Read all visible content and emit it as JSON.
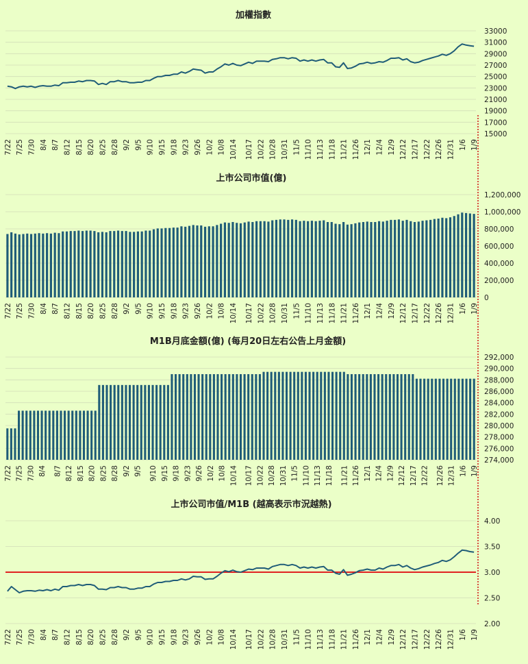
{
  "colors": {
    "background": "#ebffc8",
    "series": "#1f5c78",
    "grid": "#d2ddb8",
    "threshold": "#e02020",
    "marker": "#d01010"
  },
  "chart_data": [
    {
      "type": "line",
      "title": "加權指數",
      "ylim": [
        15000,
        33000
      ],
      "yticks": [
        "33000",
        "31000",
        "29000",
        "27000",
        "25000",
        "23000",
        "21000",
        "19000",
        "17000",
        "15000"
      ],
      "ytick_values": [
        33000,
        31000,
        29000,
        27000,
        25000,
        23000,
        21000,
        19000,
        17000,
        15000
      ],
      "xticks": [
        "7/22",
        "7/25",
        "7/30",
        "8/4",
        "8/7",
        "8/12",
        "8/15",
        "8/20",
        "8/25",
        "8/28",
        "9/2",
        "9/5",
        "9/10",
        "9/15",
        "9/18",
        "9/23",
        "9/26",
        "10/2",
        "10/8",
        "10/14",
        "10/17",
        "10/22",
        "10/28",
        "10/31",
        "11/5",
        "11/10",
        "11/13",
        "11/18",
        "11/21",
        "11/26",
        "12/1",
        "12/4",
        "12/9",
        "12/12",
        "12/17",
        "12/22",
        "12/26",
        "12/31",
        "1/6",
        "1/9"
      ],
      "values": [
        23300,
        23200,
        22900,
        23200,
        23300,
        23200,
        23300,
        23100,
        23300,
        23400,
        23300,
        23300,
        23500,
        23400,
        23900,
        23900,
        24000,
        24000,
        24200,
        24100,
        24300,
        24300,
        24200,
        23600,
        23800,
        23600,
        24100,
        24100,
        24300,
        24100,
        24100,
        23900,
        23900,
        24000,
        24000,
        24300,
        24300,
        24700,
        25000,
        25000,
        25200,
        25200,
        25400,
        25400,
        25800,
        25600,
        25900,
        26300,
        26200,
        26100,
        25600,
        25800,
        25800,
        26300,
        26700,
        27200,
        27000,
        27300,
        27000,
        26900,
        27200,
        27500,
        27300,
        27700,
        27700,
        27700,
        27600,
        28000,
        28100,
        28300,
        28300,
        28100,
        28300,
        28200,
        27700,
        27900,
        27700,
        27900,
        27700,
        27900,
        28000,
        27400,
        27400,
        26700,
        26600,
        27400,
        26400,
        26500,
        26800,
        27200,
        27300,
        27500,
        27300,
        27400,
        27600,
        27500,
        27800,
        28200,
        28200,
        28300,
        27900,
        28100,
        27600,
        27400,
        27500,
        27800,
        28000,
        28200,
        28400,
        28600,
        28900,
        28700,
        29000,
        29500,
        30200,
        30700,
        30500,
        30400,
        30300
      ]
    },
    {
      "type": "bar",
      "title": "上市公司市值(億)",
      "ylim": [
        0,
        1200000
      ],
      "yticks": [
        "1,200,000",
        "1,000,000",
        "800,000",
        "600,000",
        "400,000",
        "200,000",
        "0"
      ],
      "ytick_values": [
        1200000,
        1000000,
        800000,
        600000,
        400000,
        200000,
        0
      ],
      "xticks": [
        "7/22",
        "7/25",
        "7/30",
        "8/4",
        "8/7",
        "8/12",
        "8/15",
        "8/20",
        "8/25",
        "8/28",
        "9/2",
        "9/5",
        "9/10",
        "9/15",
        "9/18",
        "9/23",
        "9/26",
        "10/2",
        "10/8",
        "10/14",
        "10/17",
        "10/22",
        "10/28",
        "10/31",
        "11/5",
        "11/10",
        "11/13",
        "11/18",
        "11/21",
        "11/26",
        "12/1",
        "12/4",
        "12/9",
        "12/12",
        "12/17",
        "12/22",
        "12/26",
        "12/31",
        "1/6",
        "1/9"
      ],
      "values": [
        740000,
        760000,
        745000,
        735000,
        740000,
        745000,
        740000,
        745000,
        750000,
        745000,
        750000,
        745000,
        755000,
        750000,
        770000,
        770000,
        775000,
        775000,
        780000,
        775000,
        780000,
        780000,
        775000,
        760000,
        765000,
        760000,
        775000,
        775000,
        780000,
        775000,
        775000,
        765000,
        765000,
        770000,
        770000,
        780000,
        780000,
        795000,
        805000,
        805000,
        810000,
        810000,
        815000,
        815000,
        830000,
        825000,
        835000,
        845000,
        840000,
        840000,
        825000,
        830000,
        830000,
        845000,
        860000,
        875000,
        870000,
        880000,
        870000,
        865000,
        875000,
        885000,
        880000,
        890000,
        890000,
        890000,
        885000,
        900000,
        905000,
        910000,
        910000,
        905000,
        910000,
        905000,
        890000,
        895000,
        890000,
        895000,
        890000,
        895000,
        900000,
        880000,
        880000,
        860000,
        855000,
        880000,
        850000,
        855000,
        865000,
        875000,
        880000,
        885000,
        880000,
        880000,
        890000,
        885000,
        895000,
        905000,
        905000,
        910000,
        895000,
        905000,
        890000,
        880000,
        885000,
        895000,
        900000,
        905000,
        915000,
        920000,
        930000,
        925000,
        935000,
        950000,
        970000,
        990000,
        985000,
        980000,
        975000
      ]
    },
    {
      "type": "bar",
      "title": "M1B月底金額(億) (每月20日左右公告上月金額)",
      "ylim": [
        274000,
        292000
      ],
      "yticks": [
        "292,000",
        "290,000",
        "288,000",
        "286,000",
        "284,000",
        "282,000",
        "280,000",
        "278,000",
        "276,000",
        "274,000"
      ],
      "ytick_values": [
        292000,
        290000,
        288000,
        286000,
        284000,
        282000,
        280000,
        278000,
        276000,
        274000
      ],
      "xticks": [
        "7/22",
        "7/25",
        "7/30",
        "8/4",
        "8/7",
        "8/12",
        "8/15",
        "8/20",
        "8/25",
        "8/28",
        "9/2",
        "9/5",
        "9/10",
        "9/15",
        "9/18",
        "9/23",
        "9/26",
        "10/2",
        "10/8",
        "10/14",
        "10/17",
        "10/22",
        "10/28",
        "10/31",
        "11/5",
        "11/10",
        "11/13",
        "11/18",
        "11/21",
        "11/26",
        "12/1",
        "12/4",
        "12/9",
        "12/12",
        "12/17",
        "12/22",
        "12/26",
        "12/31",
        "1/6",
        "1/9"
      ],
      "values": [
        279500,
        279500,
        279500,
        282600,
        282600,
        282600,
        282600,
        282600,
        282600,
        282600,
        282600,
        282600,
        282600,
        282600,
        282600,
        282600,
        282600,
        282600,
        282600,
        282600,
        282600,
        282600,
        282600,
        282600,
        287100,
        287100,
        287100,
        287100,
        287100,
        287100,
        287100,
        287100,
        287100,
        287100,
        287100,
        287100,
        287100,
        287100,
        287100,
        287100,
        287100,
        287100,
        287100,
        289000,
        289000,
        289000,
        289000,
        289000,
        289000,
        289000,
        289000,
        289000,
        289000,
        289000,
        289000,
        289000,
        289000,
        289000,
        289000,
        289000,
        289000,
        289000,
        289000,
        289000,
        289000,
        289000,
        289000,
        289400,
        289400,
        289400,
        289400,
        289400,
        289400,
        289400,
        289400,
        289400,
        289400,
        289400,
        289400,
        289400,
        289400,
        289400,
        289400,
        289400,
        289400,
        289400,
        289400,
        289400,
        289400,
        289000,
        289000,
        289000,
        289000,
        289000,
        289000,
        289000,
        289000,
        289000,
        289000,
        289000,
        289000,
        289000,
        289000,
        289000,
        289000,
        289000,
        289000,
        288200,
        288200,
        288200,
        288200,
        288200,
        288200,
        288200,
        288200,
        288200,
        288200,
        288200,
        288200,
        288200,
        288200,
        288200,
        288200
      ]
    },
    {
      "type": "line",
      "title": "上市公司市值/M1B (越高表示市況越熱)",
      "ylim": [
        2.0,
        4.0
      ],
      "yticks": [
        "4.00",
        "3.50",
        "3.00",
        "2.50",
        "2.00"
      ],
      "ytick_values": [
        4.0,
        3.5,
        3.0,
        2.5,
        2.0
      ],
      "threshold": 3.0,
      "xticks": [
        "7/22",
        "7/25",
        "7/30",
        "8/4",
        "8/7",
        "8/12",
        "8/15",
        "8/20",
        "8/25",
        "8/28",
        "9/2",
        "9/5",
        "9/10",
        "9/15",
        "9/18",
        "9/23",
        "9/26",
        "10/2",
        "10/8",
        "10/14",
        "10/17",
        "10/22",
        "10/28",
        "10/31",
        "11/5",
        "11/10",
        "11/13",
        "11/18",
        "11/21",
        "11/26",
        "12/1",
        "12/4",
        "12/9",
        "12/12",
        "12/17",
        "12/22",
        "12/26",
        "12/31",
        "1/6",
        "1/9"
      ],
      "values": [
        2.63,
        2.72,
        2.66,
        2.6,
        2.63,
        2.64,
        2.64,
        2.63,
        2.65,
        2.64,
        2.66,
        2.64,
        2.67,
        2.65,
        2.72,
        2.72,
        2.74,
        2.74,
        2.76,
        2.74,
        2.76,
        2.76,
        2.74,
        2.67,
        2.67,
        2.66,
        2.7,
        2.7,
        2.72,
        2.7,
        2.7,
        2.67,
        2.67,
        2.69,
        2.69,
        2.72,
        2.72,
        2.77,
        2.8,
        2.8,
        2.82,
        2.82,
        2.84,
        2.84,
        2.87,
        2.85,
        2.87,
        2.92,
        2.91,
        2.91,
        2.86,
        2.87,
        2.87,
        2.92,
        2.98,
        3.03,
        3.01,
        3.04,
        3.01,
        3.0,
        3.03,
        3.06,
        3.05,
        3.08,
        3.08,
        3.08,
        3.06,
        3.11,
        3.13,
        3.15,
        3.15,
        3.13,
        3.15,
        3.13,
        3.08,
        3.1,
        3.08,
        3.1,
        3.08,
        3.1,
        3.11,
        3.04,
        3.04,
        2.98,
        2.96,
        3.05,
        2.94,
        2.96,
        2.99,
        3.03,
        3.04,
        3.06,
        3.04,
        3.04,
        3.08,
        3.06,
        3.1,
        3.13,
        3.13,
        3.15,
        3.1,
        3.13,
        3.08,
        3.05,
        3.07,
        3.1,
        3.12,
        3.14,
        3.17,
        3.19,
        3.23,
        3.21,
        3.24,
        3.3,
        3.37,
        3.43,
        3.42,
        3.4,
        3.39
      ]
    }
  ]
}
